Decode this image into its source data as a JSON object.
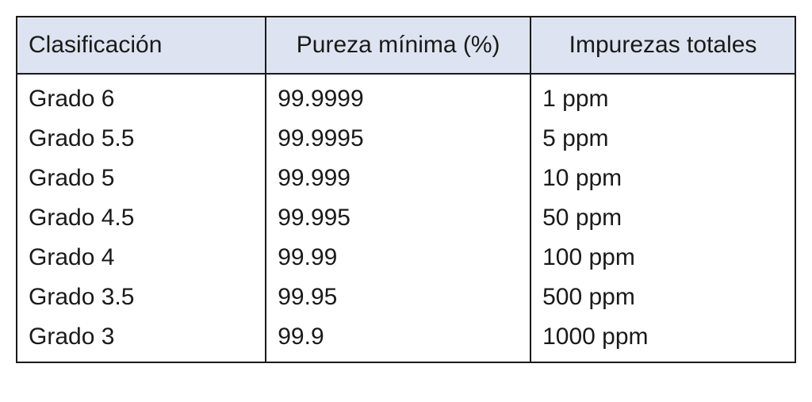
{
  "table": {
    "type": "table",
    "background_color": "#ffffff",
    "header_background_color": "#dde3f0",
    "border_color": "#1a1a1a",
    "text_color": "#1a1a1a",
    "font_family": "Arial",
    "header_fontsize": 30,
    "body_fontsize": 30,
    "columns": [
      {
        "label": "Clasificación",
        "align": "left",
        "width_pct": 32
      },
      {
        "label": "Pureza mínima (%)",
        "align": "center",
        "width_pct": 34
      },
      {
        "label": "Impurezas totales",
        "align": "center",
        "width_pct": 34
      }
    ],
    "rows": [
      [
        "Grado 6",
        "99.9999",
        "1 ppm"
      ],
      [
        "Grado 5.5",
        "99.9995",
        "5 ppm"
      ],
      [
        "Grado 5",
        "99.999",
        "10 ppm"
      ],
      [
        "Grado 4.5",
        "99.995",
        "50 ppm"
      ],
      [
        "Grado 4",
        "99.99",
        "100 ppm"
      ],
      [
        "Grado 3.5",
        "99.95",
        "500 ppm"
      ],
      [
        "Grado 3",
        "99.9",
        "1000 ppm"
      ]
    ]
  }
}
